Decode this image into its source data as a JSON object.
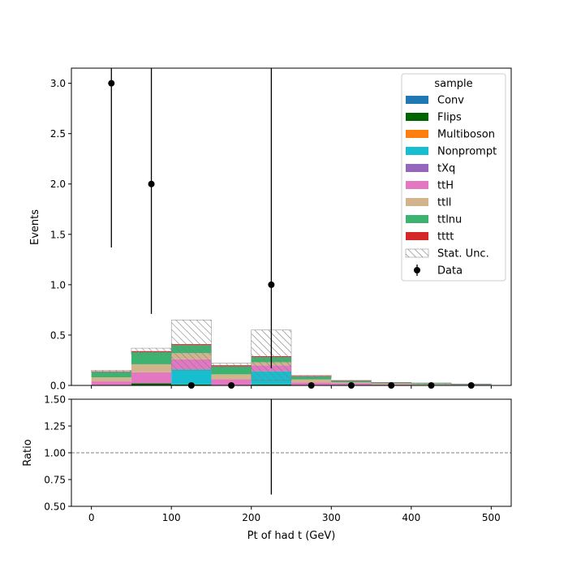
{
  "chart_data": [
    {
      "type": "bar",
      "stacked": true,
      "ylabel": "Events",
      "xlabel": "",
      "xlim": [
        -25,
        525
      ],
      "ylim": [
        0,
        3.15
      ],
      "yticks": [
        "0.0",
        "0.5",
        "1.0",
        "1.5",
        "2.0",
        "2.5",
        "3.0"
      ],
      "bin_edges": [
        0,
        50,
        100,
        150,
        200,
        250,
        300,
        350,
        400,
        450,
        500
      ],
      "legend": {
        "title": "sample",
        "placement": "upper right",
        "entries": [
          "Conv",
          "Flips",
          "Multiboson",
          "Nonprompt",
          "tXq",
          "ttH",
          "ttll",
          "ttlnu",
          "tttt",
          "Stat. Unc.",
          "Data"
        ]
      },
      "series": [
        {
          "name": "Conv",
          "color": "#1f77b4",
          "values": [
            0,
            0,
            0,
            0,
            0,
            0,
            0,
            0,
            0,
            0
          ]
        },
        {
          "name": "Flips",
          "color": "#006400",
          "values": [
            0,
            0.02,
            0.01,
            0,
            0.01,
            0,
            0,
            0,
            0,
            0
          ]
        },
        {
          "name": "Multiboson",
          "color": "#ff7f0e",
          "values": [
            0,
            0,
            0,
            0,
            0,
            0,
            0,
            0,
            0,
            0
          ]
        },
        {
          "name": "Nonprompt",
          "color": "#17becf",
          "values": [
            0,
            0,
            0.15,
            0,
            0.13,
            0,
            0,
            0,
            0,
            0
          ]
        },
        {
          "name": "tXq",
          "color": "#9467bd",
          "values": [
            0,
            0,
            0,
            0,
            0,
            0,
            0,
            0,
            0,
            0
          ]
        },
        {
          "name": "ttH",
          "color": "#e377c2",
          "values": [
            0.04,
            0.11,
            0.1,
            0.06,
            0.06,
            0.03,
            0.02,
            0.01,
            0.005,
            0.003
          ]
        },
        {
          "name": "ttll",
          "color": "#d2b48c",
          "values": [
            0.04,
            0.08,
            0.06,
            0.05,
            0.03,
            0.03,
            0.01,
            0.01,
            0.005,
            0.003
          ]
        },
        {
          "name": "ttlnu",
          "color": "#3cb371",
          "values": [
            0.055,
            0.12,
            0.08,
            0.08,
            0.05,
            0.03,
            0.015,
            0.01,
            0.01,
            0.005
          ]
        },
        {
          "name": "tttt",
          "color": "#d62728",
          "values": [
            0.005,
            0.01,
            0.01,
            0.01,
            0.01,
            0.005,
            0.003,
            0.002,
            0.001,
            0.001
          ]
        }
      ],
      "stat_unc": {
        "name": "Stat. Unc.",
        "lower": [
          0.13,
          0.31,
          0.15,
          0.18,
          0.05,
          0.08,
          0.04,
          0.025,
          0.018,
          0.01
        ],
        "upper": [
          0.15,
          0.37,
          0.65,
          0.22,
          0.55,
          0.1,
          0.05,
          0.03,
          0.025,
          0.015
        ]
      },
      "data": {
        "name": "Data",
        "x": [
          25,
          75,
          125,
          175,
          225,
          275,
          325,
          375,
          425,
          475
        ],
        "y": [
          3,
          2,
          0,
          0,
          1,
          0,
          0,
          0,
          0,
          0
        ],
        "yerr_low": [
          1.63,
          1.29,
          0,
          0,
          0.83,
          0,
          0,
          0,
          0,
          0
        ],
        "yerr_high": [
          2.92,
          2.63,
          1.84,
          1.84,
          2.3,
          1.84,
          1.84,
          1.84,
          1.84,
          1.84
        ]
      }
    },
    {
      "type": "line",
      "xlabel": "Pt of had t (GeV)",
      "ylabel": "Ratio",
      "xlim": [
        -25,
        525
      ],
      "ylim": [
        0.5,
        1.5
      ],
      "xticks": [
        "0",
        "100",
        "200",
        "300",
        "400",
        "500"
      ],
      "yticks": [
        "0.50",
        "0.75",
        "1.00",
        "1.25",
        "1.50"
      ],
      "reference_line": 1.0,
      "ratio_errors": [
        {
          "x": 225,
          "low": 0.61,
          "high": 1.6
        }
      ]
    }
  ]
}
